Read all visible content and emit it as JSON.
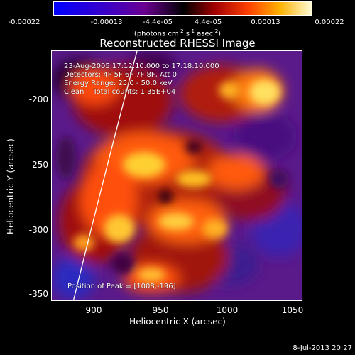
{
  "colorbar": {
    "ticks": [
      "-0.00022",
      "-0.00013",
      "-4.4e-05",
      "4.4e-05",
      "0.00013",
      "0.00022"
    ],
    "units_main": "(photons cm",
    "units_sup1": "-2",
    "units_mid": " s",
    "units_sup2": "-1",
    "units_mid2": " asec",
    "units_sup3": "-2",
    "units_end": ")"
  },
  "title": "Reconstructed RHESSI Image",
  "info": {
    "time": "23-Aug-2005 17:12:10.000 to 17:18:10.000",
    "detectors": "Detectors: 4F 5F 6F 7F 8F, Att 0",
    "energy": "Energy Range: 25.0 - 50.0 keV",
    "clean": "Clean    Total counts: 1.35E+04"
  },
  "peak": "Position of Peak = [1008,-196]",
  "axes": {
    "xlabel": "Heliocentric X (arcsec)",
    "ylabel": "Heliocentric Y (arcsec)",
    "xticks": [
      "900",
      "950",
      "1000",
      "1050"
    ],
    "yticks": [
      "-200",
      "-250",
      "-300",
      "-350"
    ]
  },
  "footer": "8-Jul-2013 20:27",
  "colors": {
    "background": "#000000",
    "frame": "#ffffff",
    "limb_line": "#ffffff"
  }
}
